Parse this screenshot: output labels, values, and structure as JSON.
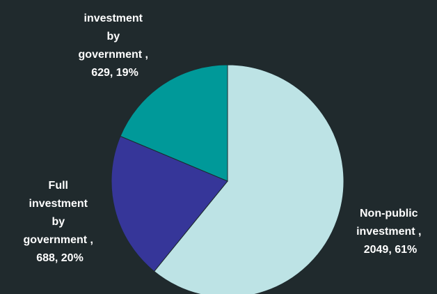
{
  "chart_data": {
    "type": "pie",
    "slices": [
      {
        "label_lines": [
          "Non-public",
          "investment ,",
          "2049, 61%"
        ],
        "value": 2049,
        "percent": 61,
        "color": "#bde3e5"
      },
      {
        "label_lines": [
          "Full",
          "investment",
          "by",
          "government ,",
          "688, 20%"
        ],
        "value": 688,
        "percent": 20,
        "color": "#363699"
      },
      {
        "label_lines": [
          "investment",
          "by",
          "government ,",
          "629, 19%"
        ],
        "value": 629,
        "percent": 19,
        "color": "#009999"
      }
    ],
    "legend": "none"
  }
}
